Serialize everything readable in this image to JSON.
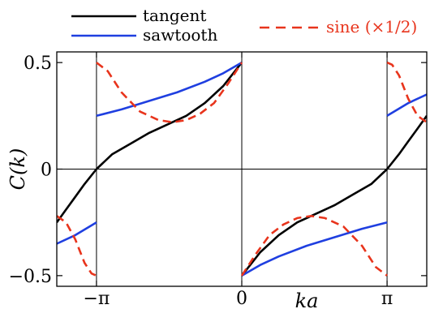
{
  "chart_data": {
    "type": "line",
    "ylabel": "C(k)",
    "xlabel": "ka",
    "xlim": [
      -4.0,
      4.0
    ],
    "ylim": [
      -0.55,
      0.55
    ],
    "grid": false,
    "reference_lines": {
      "horizontal": [
        0
      ],
      "vertical": [
        -3.14159,
        0,
        3.14159
      ]
    },
    "xticks": [
      {
        "value": -3.14159,
        "label": "−π"
      },
      {
        "value": 0,
        "label": "0"
      },
      {
        "value": 3.14159,
        "label": "π"
      }
    ],
    "yticks": [
      {
        "value": 0.5,
        "label": "0.5"
      },
      {
        "value": 0,
        "label": "0"
      },
      {
        "value": -0.5,
        "label": "−0.5"
      }
    ],
    "legend": {
      "placement": "top",
      "entries": [
        {
          "label": "tangent",
          "color": "#000000",
          "dash": "solid"
        },
        {
          "label": "sawtooth",
          "color": "#1f3fe0",
          "dash": "solid"
        },
        {
          "label": "sine (×1/2)",
          "color": "#e8341c",
          "dash": "dashed"
        }
      ]
    },
    "series": [
      {
        "name": "tangent",
        "color": "#000000",
        "segments": [
          {
            "x": [
              -4.0,
              -3.8,
              -3.6,
              -3.4,
              -3.14159
            ],
            "y": [
              -0.25,
              -0.19,
              -0.13,
              -0.07,
              0.0
            ]
          },
          {
            "x": [
              -3.14159,
              -2.8,
              -2.4,
              -2.0,
              -1.6,
              -1.2,
              -0.8,
              -0.4,
              0.0
            ],
            "y": [
              0.0,
              0.07,
              0.12,
              0.17,
              0.21,
              0.25,
              0.31,
              0.39,
              0.5
            ]
          },
          {
            "x": [
              0.0,
              0.4,
              0.8,
              1.2,
              1.6,
              2.0,
              2.4,
              2.8,
              3.14159
            ],
            "y": [
              -0.5,
              -0.39,
              -0.31,
              -0.25,
              -0.21,
              -0.17,
              -0.12,
              -0.07,
              0.0
            ]
          },
          {
            "x": [
              3.14159,
              3.4,
              3.6,
              3.8,
              4.0
            ],
            "y": [
              0.0,
              0.07,
              0.13,
              0.19,
              0.25
            ]
          }
        ]
      },
      {
        "name": "sawtooth",
        "color": "#1f3fe0",
        "segments": [
          {
            "x": [
              -4.0,
              -3.6,
              -3.14159
            ],
            "y": [
              -0.35,
              -0.31,
              -0.25
            ]
          },
          {
            "x": [
              -3.14159,
              -2.6,
              -2.0,
              -1.4,
              -0.8,
              -0.4,
              0.0
            ],
            "y": [
              0.25,
              0.28,
              0.32,
              0.36,
              0.41,
              0.45,
              0.5
            ]
          },
          {
            "x": [
              0.0,
              0.4,
              0.8,
              1.4,
              2.0,
              2.6,
              3.14159
            ],
            "y": [
              -0.5,
              -0.45,
              -0.41,
              -0.36,
              -0.32,
              -0.28,
              -0.25
            ]
          },
          {
            "x": [
              3.14159,
              3.6,
              4.0
            ],
            "y": [
              0.25,
              0.31,
              0.35
            ]
          }
        ]
      },
      {
        "name": "sine (×1/2)",
        "color": "#e8341c",
        "segments": [
          {
            "x": [
              -4.0,
              -3.8,
              -3.6,
              -3.4,
              -3.25,
              -3.14159
            ],
            "y": [
              -0.22,
              -0.25,
              -0.33,
              -0.44,
              -0.49,
              -0.5
            ]
          },
          {
            "x": [
              -3.14159,
              -2.9,
              -2.6,
              -2.2,
              -1.8,
              -1.5,
              -1.2,
              -0.9,
              -0.6,
              -0.3,
              0.0
            ],
            "y": [
              0.5,
              0.46,
              0.36,
              0.27,
              0.23,
              0.22,
              0.23,
              0.26,
              0.31,
              0.4,
              0.5
            ]
          },
          {
            "x": [
              0.0,
              0.3,
              0.6,
              0.9,
              1.2,
              1.5,
              1.8,
              2.2,
              2.6,
              2.9,
              3.14159
            ],
            "y": [
              -0.5,
              -0.4,
              -0.31,
              -0.26,
              -0.23,
              -0.22,
              -0.23,
              -0.27,
              -0.36,
              -0.46,
              -0.5
            ]
          },
          {
            "x": [
              3.14159,
              3.25,
              3.4,
              3.6,
              3.8,
              4.0
            ],
            "y": [
              0.5,
              0.49,
              0.44,
              0.33,
              0.25,
              0.22
            ]
          }
        ]
      }
    ]
  }
}
